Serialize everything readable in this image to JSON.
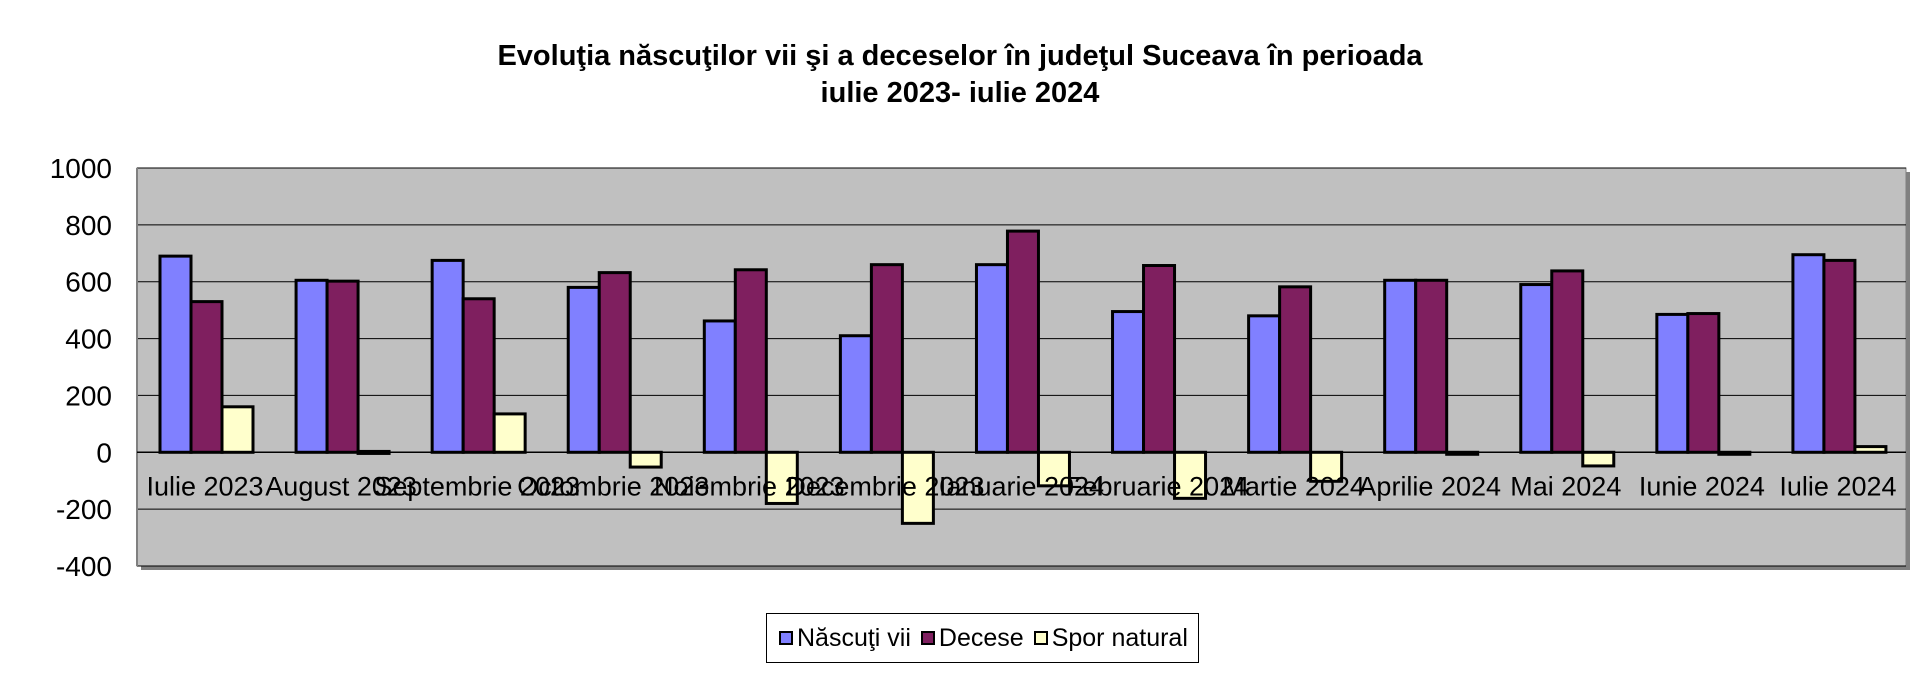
{
  "chart_data": {
    "type": "bar",
    "title": "Evoluţia născuţilor vii şi a deceselor în judeţul Suceava în perioada",
    "subtitle": "iulie 2023- iulie 2024",
    "categories": [
      "Iulie 2023",
      "August 2023",
      "Septembrie 2023",
      "Octombrie 2023",
      "Noiembrie 2023",
      "Decembrie 2023",
      "Ianuarie 2024",
      "Februarie 2024",
      "Martie 2024",
      "Aprilie 2024",
      "Mai 2024",
      "Iunie 2024",
      "Iulie 2024"
    ],
    "series": [
      {
        "name": "Născuţi vii",
        "color": "#8080FF",
        "values": [
          690,
          605,
          675,
          580,
          462,
          410,
          660,
          495,
          480,
          605,
          590,
          485,
          695
        ]
      },
      {
        "name": "Decese",
        "color": "#7F1F5F",
        "values": [
          530,
          602,
          540,
          632,
          642,
          660,
          778,
          657,
          582,
          605,
          638,
          488,
          675
        ]
      },
      {
        "name": "Spor natural",
        "color": "#FFFFCC",
        "values": [
          160,
          3,
          135,
          -52,
          -180,
          -250,
          -118,
          -162,
          -102,
          0,
          -48,
          -3,
          20
        ]
      }
    ],
    "ylim": [
      -400,
      1000
    ],
    "yticks": [
      1000,
      800,
      600,
      400,
      200,
      0,
      -200,
      -400
    ],
    "grid": true,
    "legend": "bottom",
    "plot_background": "#C0C0C0"
  }
}
